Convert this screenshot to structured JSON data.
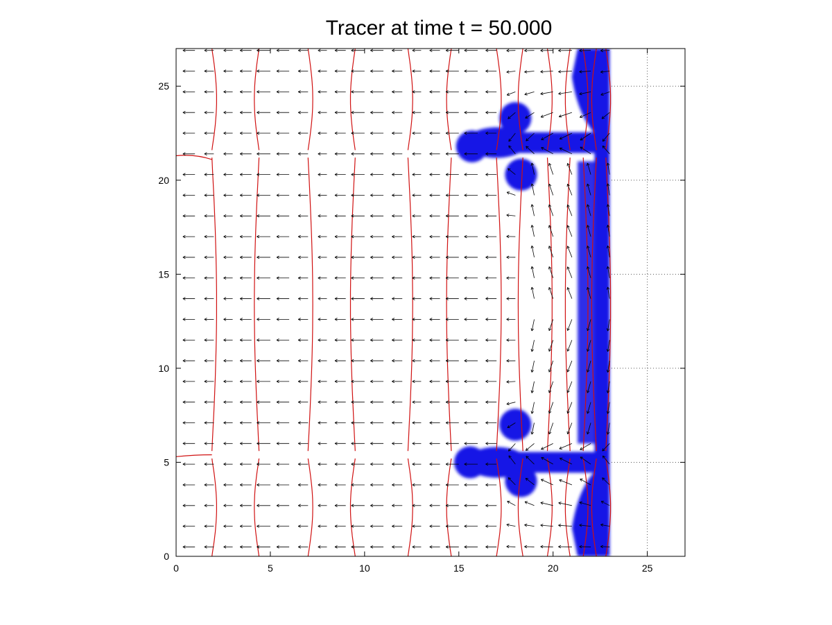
{
  "chart_data": {
    "type": "vector-field",
    "title": "Tracer at time t = 50.000",
    "xlabel": "",
    "ylabel": "",
    "xlim": [
      0,
      27
    ],
    "ylim": [
      0,
      27
    ],
    "xticks": [
      "0",
      "5",
      "10",
      "15",
      "20",
      "25"
    ],
    "yticks": [
      "0",
      "5",
      "10",
      "15",
      "20",
      "25"
    ],
    "grid": "dotted, right of x = 23",
    "colors": {
      "tracer": "#1414e6",
      "contour": "#d01010",
      "arrows": "#000000",
      "grid": "#555555"
    },
    "contour_lines_x": [
      1.9,
      4.4,
      7.0,
      9.5,
      12.3,
      14.6,
      17.0,
      18.4,
      19.7,
      20.9,
      21.6,
      22.3,
      22.8
    ],
    "tracer_region": {
      "wall_x": [
        22.2,
        23.0
      ],
      "upper_branch": {
        "y": 22.0,
        "x_range": [
          15.5,
          22.2
        ],
        "lobes": [
          [
            18.0,
            23.3
          ],
          [
            18.3,
            20.3
          ],
          [
            15.7,
            21.8
          ]
        ]
      },
      "lower_branch": {
        "y": 5.0,
        "x_range": [
          15.5,
          22.2
        ],
        "lobes": [
          [
            18.0,
            7.0
          ],
          [
            18.3,
            4.0
          ],
          [
            15.6,
            5.0
          ]
        ]
      }
    },
    "vector_grid": {
      "dx": 1.0,
      "dy": 1.1,
      "x_range": [
        0,
        23
      ],
      "y_range": [
        0.5,
        27
      ]
    }
  }
}
